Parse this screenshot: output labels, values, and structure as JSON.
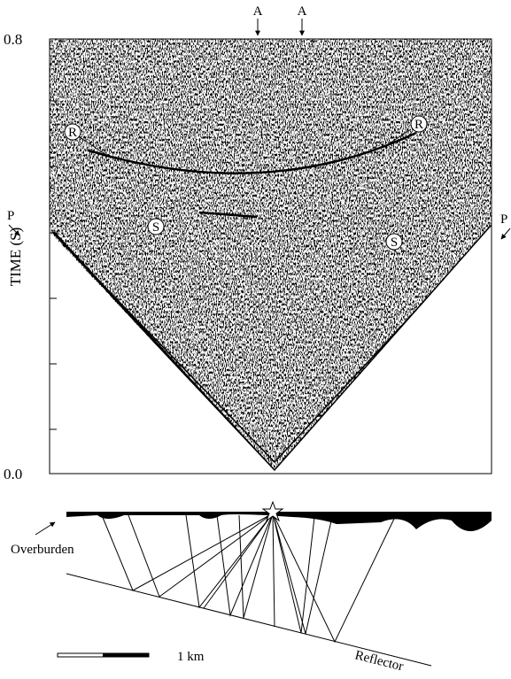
{
  "seismic": {
    "y_label": "TIME (S)",
    "y_top": "0.8",
    "y_bottom": "0.0",
    "markers": {
      "a_left": "A",
      "a_right": "A",
      "r_left": "R",
      "r_right": "R",
      "s_left": "S",
      "s_right": "S",
      "p_left": "P",
      "p_right": "P"
    }
  },
  "diagram": {
    "overburden": "Overburden",
    "reflector": "Reflector",
    "scale": "1 km"
  }
}
